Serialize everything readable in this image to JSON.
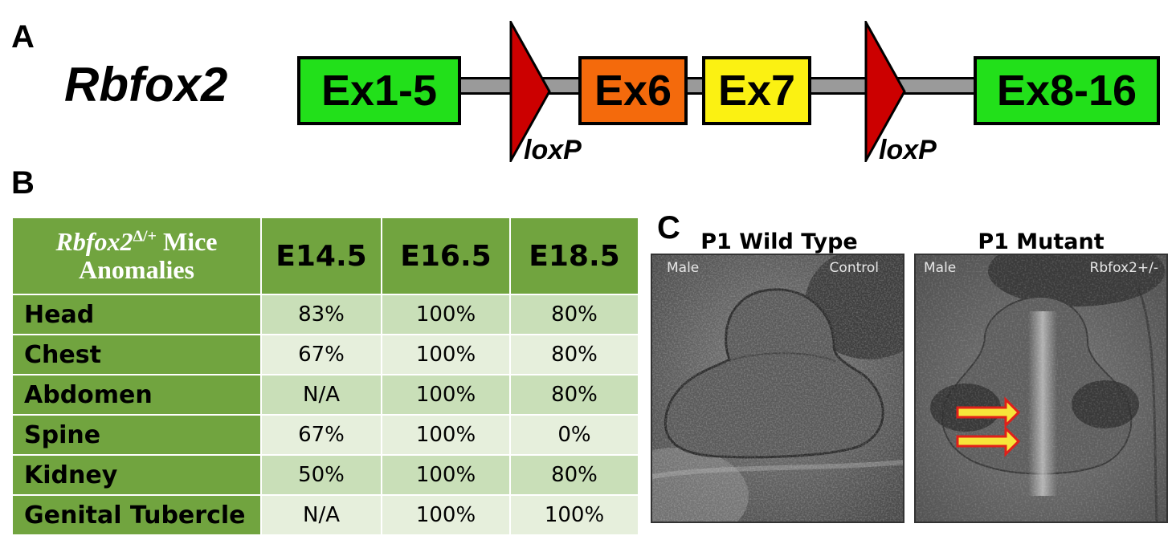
{
  "panel_a": {
    "letter": "A",
    "gene": "Rbfox2",
    "exons": [
      {
        "label": "Ex1-5",
        "color": "#22e01a"
      },
      {
        "label": "Ex6",
        "color": "#f46a0c"
      },
      {
        "label": "Ex7",
        "color": "#fbf112"
      },
      {
        "label": "Ex8-16",
        "color": "#22e01a"
      }
    ],
    "loxp": [
      {
        "label": "loxP",
        "color": "#cc0000"
      },
      {
        "label": "loxP",
        "color": "#cc0000"
      }
    ],
    "intron_color": "#9a9a9a"
  },
  "panel_b": {
    "letter": "B",
    "header": {
      "gene": "Rbfox2",
      "superscript": "Δ/+",
      "line1_rest": " Mice",
      "line2": "Anomalies",
      "columns": [
        "E14.5",
        "E16.5",
        "E18.5"
      ]
    },
    "rows": [
      {
        "label": "Head",
        "values": [
          "83%",
          "100%",
          "80%"
        ]
      },
      {
        "label": "Chest",
        "values": [
          "67%",
          "100%",
          "80%"
        ]
      },
      {
        "label": "Abdomen",
        "values": [
          "N/A",
          "100%",
          "80%"
        ]
      },
      {
        "label": "Spine",
        "values": [
          "67%",
          "100%",
          "0%"
        ]
      },
      {
        "label": "Kidney",
        "values": [
          "50%",
          "100%",
          "80%"
        ]
      },
      {
        "label": "Genital Tubercle",
        "values": [
          "N/A",
          "100%",
          "100%"
        ]
      }
    ],
    "colors": {
      "header": "#71a43f",
      "row_dark": "#c9dfb8",
      "row_light": "#e6efdc"
    }
  },
  "panel_c": {
    "letter": "C",
    "images": [
      {
        "title": "P1 Wild Type",
        "tag_left": "Male",
        "tag_right": "Control"
      },
      {
        "title": "P1 Mutant",
        "tag_left": "Male",
        "tag_right": "Rbfox2+/-"
      }
    ],
    "arrow_fill": "#f7e63a",
    "arrow_stroke": "#e0201a"
  }
}
